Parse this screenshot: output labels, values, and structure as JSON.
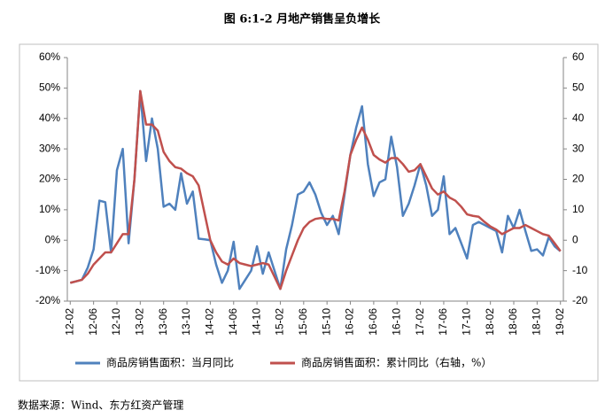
{
  "chart_data": {
    "type": "line",
    "title": "图 6:1-2 月地产销售呈负增长",
    "source": "数据来源：Wind、东方红资产管理",
    "categories": [
      "12-02",
      null,
      null,
      null,
      "12-06",
      null,
      null,
      null,
      "12-10",
      null,
      null,
      null,
      "13-02",
      null,
      null,
      null,
      "13-06",
      null,
      null,
      null,
      "13-10",
      null,
      null,
      null,
      "14-02",
      null,
      null,
      null,
      "14-06",
      null,
      null,
      null,
      "14-10",
      null,
      null,
      null,
      "15-02",
      null,
      null,
      null,
      "15-06",
      null,
      null,
      null,
      "15-10",
      null,
      null,
      null,
      "16-02",
      null,
      null,
      null,
      "16-06",
      null,
      null,
      null,
      "16-10",
      null,
      null,
      null,
      "17-02",
      null,
      null,
      null,
      "17-06",
      null,
      null,
      null,
      "17-10",
      null,
      null,
      null,
      "18-02",
      null,
      null,
      null,
      "18-06",
      null,
      null,
      null,
      "18-10",
      null,
      null,
      null,
      "19-02"
    ],
    "series": [
      {
        "name": "商品房销售面积：当月同比",
        "color": "#4f81bd",
        "axis": "y",
        "values": [
          -14,
          -13.5,
          -13,
          -9,
          -3,
          13,
          12.5,
          -4,
          23,
          30,
          -1,
          20,
          49,
          26,
          40,
          30,
          11,
          12,
          10,
          22,
          12,
          16,
          0.5,
          0.3,
          0,
          -8,
          -14,
          -10,
          -0.5,
          -16,
          -13,
          -10,
          -2,
          -11,
          -4,
          -10,
          -16,
          -3,
          5,
          15,
          16,
          19,
          15,
          9,
          5,
          8,
          2,
          15,
          28,
          37,
          44,
          25,
          14.5,
          19,
          20,
          34,
          24,
          8,
          12,
          18,
          25,
          18,
          8,
          10,
          21,
          2,
          4,
          -1,
          -6,
          5,
          6,
          5,
          4,
          3,
          -4,
          8,
          4,
          10,
          3,
          -3.5,
          -3,
          -5,
          1,
          -2,
          -3.6
        ]
      },
      {
        "name": "商品房销售面积：累计同比（右轴，%）",
        "color": "#c0504d",
        "axis": "y2",
        "values": [
          -14,
          -13.5,
          -13,
          -11,
          -8,
          -6,
          -4,
          -4,
          -1,
          2,
          2,
          20,
          49,
          38,
          38,
          36,
          29,
          26,
          24,
          23.5,
          22,
          21,
          18,
          9,
          0,
          -4,
          -7,
          -8,
          -6,
          -7.5,
          -8,
          -8.5,
          -8,
          -7.5,
          -8,
          -12,
          -16,
          -10,
          -5,
          0,
          4,
          6,
          7,
          7.3,
          7,
          7,
          6.5,
          16,
          28,
          33,
          37,
          33,
          28,
          26.5,
          25.5,
          27,
          27,
          25,
          22.5,
          23,
          25,
          21,
          17,
          15,
          16,
          14,
          13,
          11,
          8.5,
          8,
          7.7,
          6,
          4.5,
          3.5,
          2,
          3,
          4,
          4,
          5,
          4,
          3,
          2,
          1.5,
          -1,
          -3.6
        ]
      }
    ],
    "ylim": [
      -20,
      60
    ],
    "yticks": [
      {
        "value": 60,
        "label": "60%"
      },
      {
        "value": 50,
        "label": "50%"
      },
      {
        "value": 40,
        "label": "40%"
      },
      {
        "value": 30,
        "label": "30%"
      },
      {
        "value": 20,
        "label": "20%"
      },
      {
        "value": 10,
        "label": "10%"
      },
      {
        "value": 0,
        "label": "0%"
      },
      {
        "value": -10,
        "label": "-10%"
      },
      {
        "value": -20,
        "label": "-20%"
      }
    ],
    "y2lim": [
      -20,
      60
    ],
    "y2ticks": [
      60,
      50,
      40,
      30,
      20,
      10,
      0,
      -10,
      -20
    ],
    "legend": "bottom"
  }
}
